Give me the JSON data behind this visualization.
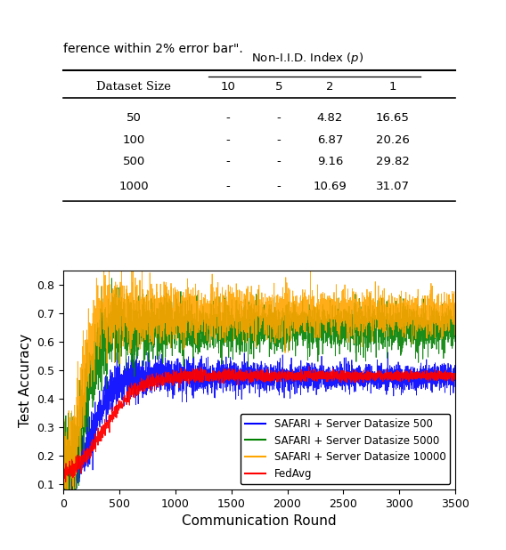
{
  "title_text": "ference within 2% error bar\".",
  "table": {
    "col_header": [
      "Dataset Size",
      "10",
      "5",
      "2",
      "1"
    ],
    "col_group_header": "Non-I.I.D. Index (p)",
    "rows": [
      [
        "50",
        "-",
        "-",
        "4.82",
        "16.65"
      ],
      [
        "100",
        "-",
        "-",
        "6.87",
        "20.26"
      ],
      [
        "500",
        "-",
        "-",
        "9.16",
        "29.82"
      ],
      [
        "1000",
        "-",
        "-",
        "10.69",
        "31.07"
      ]
    ]
  },
  "plot": {
    "xlabel": "Communication Round",
    "ylabel": "Test Accuracy",
    "xlim": [
      0,
      3500
    ],
    "ylim": [
      0.08,
      0.85
    ],
    "yticks": [
      0.1,
      0.2,
      0.3,
      0.4,
      0.5,
      0.6,
      0.7,
      0.8
    ],
    "xticks": [
      0,
      500,
      1000,
      1500,
      2000,
      2500,
      3000,
      3500
    ],
    "lines": [
      {
        "label": "SAFARI + Server Datasize 500",
        "color": "#0000ff",
        "final_mean": 0.475,
        "converge_round": 400,
        "noise": 0.025,
        "start": 0.12
      },
      {
        "label": "SAFARI + Server Datasize 5000",
        "color": "#008000",
        "final_mean": 0.65,
        "converge_round": 300,
        "noise": 0.045,
        "start": 0.14
      },
      {
        "label": "SAFARI + Server Datasize 10000",
        "color": "#ffa500",
        "final_mean": 0.7,
        "converge_round": 250,
        "noise": 0.045,
        "start": 0.16
      },
      {
        "label": "FedAvg",
        "color": "#ff0000",
        "final_mean": 0.48,
        "converge_round": 600,
        "noise": 0.01,
        "start": 0.1
      }
    ],
    "n_points": 3500
  }
}
